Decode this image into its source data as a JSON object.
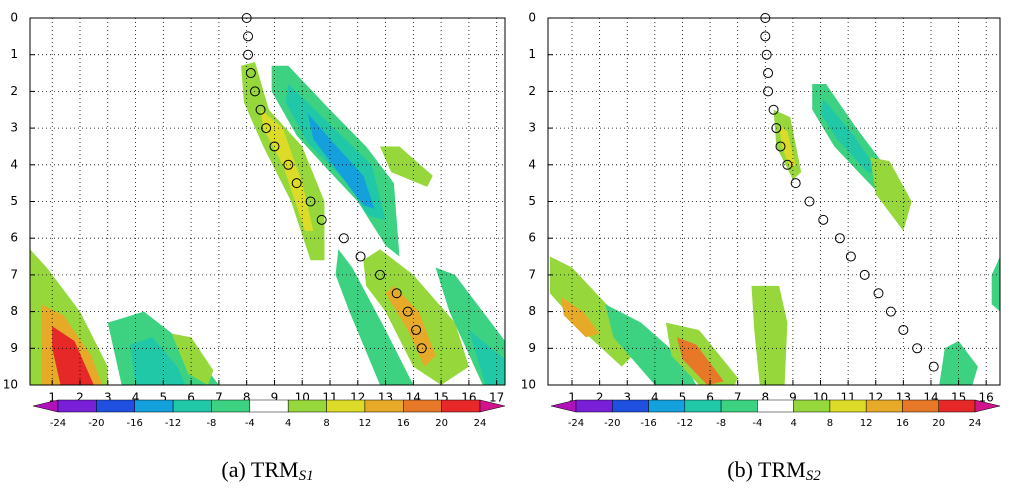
{
  "chart_data": [
    {
      "type": "contour",
      "caption": "(a) TRM",
      "caption_sub": "S1",
      "xlim": [
        0.2,
        17.3
      ],
      "ylim": [
        10,
        0
      ],
      "xticks": [
        1,
        2,
        3,
        4,
        5,
        6,
        7,
        8,
        9,
        10,
        11,
        12,
        13,
        14,
        15,
        16,
        17
      ],
      "yticks": [
        0,
        1,
        2,
        3,
        4,
        5,
        6,
        7,
        8,
        9,
        10
      ],
      "grid": true,
      "colorbar": {
        "levels": [
          -24,
          -20,
          -16,
          -12,
          -8,
          -4,
          4,
          8,
          12,
          16,
          20,
          24
        ],
        "colors": [
          "#b010b8",
          "#7a1fd8",
          "#2050e0",
          "#14a0dc",
          "#20c8a8",
          "#3cd282",
          "#ffffff",
          "#96d83c",
          "#dcdc28",
          "#e6aa28",
          "#e67828",
          "#e62828",
          "#d2148c"
        ]
      },
      "regions": [
        {
          "level": 4,
          "points": [
            [
              7.8,
              1.3
            ],
            [
              8.3,
              1.2
            ],
            [
              8.8,
              2.5
            ],
            [
              10,
              3.5
            ],
            [
              10.8,
              5
            ],
            [
              10.8,
              6.6
            ],
            [
              10.3,
              6.6
            ],
            [
              9.6,
              5
            ],
            [
              8.6,
              3.5
            ],
            [
              7.9,
              2.3
            ]
          ]
        },
        {
          "level": 8,
          "points": [
            [
              8.5,
              2.5
            ],
            [
              9.3,
              3
            ],
            [
              10,
              4.5
            ],
            [
              10.4,
              5.8
            ],
            [
              10.1,
              5.8
            ],
            [
              9.3,
              4
            ],
            [
              8.6,
              3
            ]
          ]
        },
        {
          "level": -8,
          "points": [
            [
              8.9,
              1.3
            ],
            [
              9.5,
              1.3
            ],
            [
              11,
              2.5
            ],
            [
              12.3,
              3.5
            ],
            [
              13.3,
              4.5
            ],
            [
              13.5,
              6.5
            ],
            [
              13,
              6.2
            ],
            [
              12,
              5
            ],
            [
              11,
              4.2
            ],
            [
              9.8,
              3.2
            ],
            [
              8.9,
              2
            ]
          ]
        },
        {
          "level": -12,
          "points": [
            [
              9.5,
              1.8
            ],
            [
              11,
              2.9
            ],
            [
              12.5,
              4
            ],
            [
              13,
              5.5
            ],
            [
              12.4,
              5.4
            ],
            [
              11.5,
              4.4
            ],
            [
              10.2,
              3.4
            ],
            [
              9.4,
              2.3
            ]
          ]
        },
        {
          "level": -16,
          "points": [
            [
              10.2,
              2.6
            ],
            [
              11,
              3.3
            ],
            [
              12.2,
              4.3
            ],
            [
              12.6,
              5.2
            ],
            [
              12.2,
              5.1
            ],
            [
              11.4,
              4.3
            ],
            [
              10.4,
              3.3
            ]
          ]
        },
        {
          "level": 4,
          "points": [
            [
              12.8,
              3.5
            ],
            [
              13.5,
              3.5
            ],
            [
              14.7,
              4.3
            ],
            [
              14.5,
              4.6
            ],
            [
              13.2,
              4.2
            ]
          ]
        },
        {
          "level": -8,
          "points": [
            [
              11.3,
              6.3
            ],
            [
              11.8,
              6.8
            ],
            [
              13,
              8.5
            ],
            [
              14,
              10
            ],
            [
              12.8,
              10
            ],
            [
              11.7,
              8
            ],
            [
              11.2,
              7
            ]
          ]
        },
        {
          "level": 4,
          "points": [
            [
              12.2,
              6.6
            ],
            [
              12.8,
              6.3
            ],
            [
              14,
              7
            ],
            [
              15.5,
              8.3
            ],
            [
              16,
              9.5
            ],
            [
              15,
              10
            ],
            [
              14,
              9.5
            ],
            [
              13,
              8
            ],
            [
              12.3,
              7.3
            ]
          ]
        },
        {
          "level": 12,
          "points": [
            [
              13.3,
              7.3
            ],
            [
              14.2,
              8
            ],
            [
              14.8,
              9.2
            ],
            [
              14.4,
              9.5
            ],
            [
              13.8,
              8.5
            ],
            [
              13,
              7.5
            ]
          ]
        },
        {
          "level": -8,
          "points": [
            [
              14.8,
              6.8
            ],
            [
              15.5,
              7
            ],
            [
              17.3,
              8.8
            ],
            [
              17.3,
              10
            ],
            [
              16.5,
              10
            ],
            [
              15.3,
              8
            ]
          ]
        },
        {
          "level": -12,
          "points": [
            [
              16,
              8.5
            ],
            [
              17.3,
              9.3
            ],
            [
              17.3,
              10
            ],
            [
              16.6,
              10
            ]
          ]
        },
        {
          "level": 4,
          "points": [
            [
              0.2,
              6.3
            ],
            [
              0.8,
              6.8
            ],
            [
              2,
              8
            ],
            [
              3,
              9.5
            ],
            [
              3,
              10
            ],
            [
              0.2,
              10
            ]
          ]
        },
        {
          "level": 12,
          "points": [
            [
              0.6,
              7.8
            ],
            [
              1.4,
              8.1
            ],
            [
              2.4,
              9.2
            ],
            [
              2.8,
              10
            ],
            [
              0.6,
              10
            ]
          ]
        },
        {
          "level": 20,
          "points": [
            [
              1,
              8.4
            ],
            [
              1.8,
              8.8
            ],
            [
              2.5,
              10
            ],
            [
              1.3,
              10
            ],
            [
              1,
              9
            ]
          ]
        },
        {
          "level": -8,
          "points": [
            [
              3,
              8.3
            ],
            [
              4.3,
              8
            ],
            [
              6,
              9
            ],
            [
              7,
              10
            ],
            [
              3.5,
              10
            ]
          ]
        },
        {
          "level": -12,
          "points": [
            [
              3.8,
              8.9
            ],
            [
              4.6,
              8.7
            ],
            [
              5.5,
              9.5
            ],
            [
              5.8,
              10
            ],
            [
              4,
              10
            ]
          ]
        },
        {
          "level": 4,
          "points": [
            [
              5.3,
              8.6
            ],
            [
              6,
              8.7
            ],
            [
              6.8,
              9.6
            ],
            [
              6.6,
              10
            ],
            [
              5.9,
              9.7
            ]
          ]
        }
      ],
      "circles": {
        "x": [
          8,
          8.05,
          8.05,
          8.15,
          8.3,
          8.5,
          8.7,
          9,
          9.5,
          9.8,
          10.3,
          10.7,
          11.5,
          12.1,
          12.8,
          13.4,
          13.8,
          14.1,
          14.3
        ],
        "y": [
          0,
          0.5,
          1,
          1.5,
          2,
          2.5,
          3,
          3.5,
          4,
          4.5,
          5,
          5.5,
          6,
          6.5,
          7,
          7.5,
          8,
          8.5,
          9
        ]
      }
    },
    {
      "type": "contour",
      "caption": "(b) TRM",
      "caption_sub": "S2",
      "xlim": [
        0.13,
        16.5
      ],
      "ylim": [
        10,
        0
      ],
      "xticks": [
        1,
        2,
        3,
        4,
        5,
        6,
        7,
        8,
        9,
        10,
        11,
        12,
        13,
        14,
        15,
        16
      ],
      "yticks": [
        0,
        1,
        2,
        3,
        4,
        5,
        6,
        7,
        8,
        9,
        10
      ],
      "grid": true,
      "colorbar": {
        "levels": [
          -24,
          -20,
          -16,
          -12,
          -8,
          -4,
          4,
          8,
          12,
          16,
          20,
          24
        ],
        "colors": [
          "#b010b8",
          "#7a1fd8",
          "#2050e0",
          "#14a0dc",
          "#20c8a8",
          "#3cd282",
          "#ffffff",
          "#96d83c",
          "#dcdc28",
          "#e6aa28",
          "#e67828",
          "#e62828",
          "#d2148c"
        ]
      },
      "regions": [
        {
          "level": 4,
          "points": [
            [
              8.3,
              2.5
            ],
            [
              8.9,
              2.7
            ],
            [
              9.3,
              4.2
            ],
            [
              9,
              4.4
            ],
            [
              8.4,
              3.5
            ]
          ]
        },
        {
          "level": 8,
          "points": [
            [
              8.5,
              2.9
            ],
            [
              8.8,
              3.1
            ],
            [
              9.1,
              4
            ],
            [
              8.9,
              4.1
            ],
            [
              8.6,
              3.5
            ]
          ]
        },
        {
          "level": -8,
          "points": [
            [
              9.7,
              1.8
            ],
            [
              10.2,
              1.8
            ],
            [
              11.3,
              3
            ],
            [
              12.3,
              4
            ],
            [
              12.7,
              4.6
            ],
            [
              12.4,
              5
            ],
            [
              11.5,
              4.3
            ],
            [
              10.5,
              3.5
            ],
            [
              9.7,
              2.5
            ]
          ]
        },
        {
          "level": -12,
          "points": [
            [
              10.1,
              2.2
            ],
            [
              11.2,
              3.2
            ],
            [
              12.2,
              4.3
            ],
            [
              11.7,
              4.2
            ],
            [
              10.6,
              3.3
            ],
            [
              10,
              2.6
            ]
          ]
        },
        {
          "level": 4,
          "points": [
            [
              11.8,
              3.8
            ],
            [
              12.5,
              3.9
            ],
            [
              13.3,
              5
            ],
            [
              13,
              5.8
            ],
            [
              12,
              4.8
            ]
          ]
        },
        {
          "level": 4,
          "points": [
            [
              0.2,
              6.5
            ],
            [
              1,
              6.8
            ],
            [
              2.5,
              8
            ],
            [
              3.2,
              9.2
            ],
            [
              2.8,
              9.5
            ],
            [
              1.5,
              8.6
            ],
            [
              0.2,
              7.5
            ]
          ]
        },
        {
          "level": 12,
          "points": [
            [
              0.6,
              7.6
            ],
            [
              1.4,
              8
            ],
            [
              2,
              8.6
            ],
            [
              1.5,
              8.7
            ],
            [
              0.7,
              8.1
            ]
          ]
        },
        {
          "level": -8,
          "points": [
            [
              2.2,
              7.8
            ],
            [
              3.5,
              8.3
            ],
            [
              5,
              9.3
            ],
            [
              5.5,
              10
            ],
            [
              4,
              10
            ],
            [
              2.5,
              8.7
            ]
          ]
        },
        {
          "level": 4,
          "points": [
            [
              4.4,
              8.3
            ],
            [
              5.6,
              8.5
            ],
            [
              7,
              9.8
            ],
            [
              6.9,
              10
            ],
            [
              5.6,
              10
            ],
            [
              4.6,
              9.2
            ]
          ]
        },
        {
          "level": 16,
          "points": [
            [
              4.8,
              8.7
            ],
            [
              5.5,
              8.9
            ],
            [
              6.5,
              9.9
            ],
            [
              5.9,
              10
            ],
            [
              5,
              9.3
            ]
          ]
        },
        {
          "level": 4,
          "points": [
            [
              7.5,
              7.3
            ],
            [
              8.5,
              7.3
            ],
            [
              8.8,
              8.3
            ],
            [
              8.7,
              10
            ],
            [
              7.8,
              10
            ],
            [
              7.6,
              8.5
            ]
          ]
        },
        {
          "level": -8,
          "points": [
            [
              14.5,
              9
            ],
            [
              15,
              8.8
            ],
            [
              15.7,
              9.5
            ],
            [
              15.5,
              10
            ],
            [
              14.3,
              10
            ]
          ]
        },
        {
          "level": -8,
          "points": [
            [
              16.2,
              7
            ],
            [
              16.5,
              6.5
            ],
            [
              16.5,
              8
            ],
            [
              16.2,
              7.8
            ]
          ]
        }
      ],
      "circles": {
        "x": [
          8,
          8,
          8.05,
          8.1,
          8.1,
          8.3,
          8.4,
          8.55,
          8.8,
          9.1,
          9.6,
          10.1,
          10.7,
          11.1,
          11.6,
          12.1,
          12.55,
          13,
          13.5,
          14.1
        ],
        "y": [
          0,
          0.5,
          1,
          1.5,
          2,
          2.5,
          3,
          3.5,
          4,
          4.5,
          5,
          5.5,
          6,
          6.5,
          7,
          7.5,
          8,
          8.5,
          9,
          9.5
        ]
      }
    }
  ]
}
